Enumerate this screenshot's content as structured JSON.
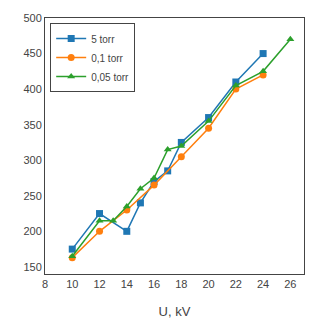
{
  "chart_data": {
    "type": "line",
    "x_label": "U, kV",
    "series": [
      {
        "name": "5 torr",
        "marker": "square",
        "line_style": "solid",
        "x": [
          10,
          12,
          14,
          15,
          16,
          17,
          18,
          20,
          22,
          24
        ],
        "values": [
          175,
          225,
          200,
          240,
          270,
          285,
          325,
          360,
          410,
          450
        ]
      },
      {
        "name": "0,1 torr",
        "marker": "circle",
        "line_style": "solid",
        "x": [
          10,
          12,
          14,
          16,
          18,
          20,
          22,
          24
        ],
        "values": [
          163,
          200,
          230,
          265,
          305,
          345,
          400,
          420
        ]
      },
      {
        "name": "0,05 torr",
        "marker": "triangle-up",
        "line_style": "solid",
        "x": [
          10,
          12,
          13,
          14,
          15,
          16,
          17,
          18,
          20,
          22,
          24,
          26
        ],
        "values": [
          165,
          215,
          215,
          235,
          260,
          275,
          315,
          320,
          355,
          405,
          425,
          470
        ]
      }
    ],
    "xlim": [
      8,
      27
    ],
    "ylim": [
      140,
      500
    ],
    "xticks": [
      8,
      10,
      12,
      14,
      16,
      18,
      20,
      22,
      24,
      26
    ],
    "yticks": [
      150,
      200,
      250,
      300,
      350,
      400,
      450,
      500
    ],
    "grid": false,
    "legend": "upper left"
  }
}
